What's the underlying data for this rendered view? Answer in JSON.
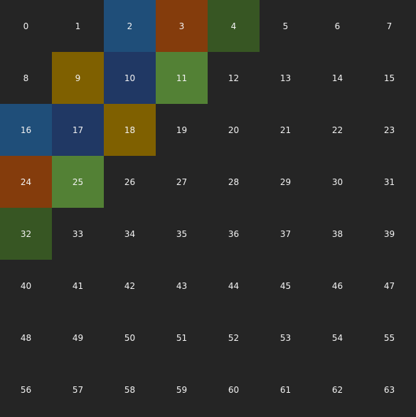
{
  "grid": {
    "columns": 8,
    "rows": 8,
    "background": "#252525",
    "text_color": "#f2f2f2",
    "cells": [
      {
        "label": "0"
      },
      {
        "label": "1"
      },
      {
        "label": "2",
        "color": "#1f4e79"
      },
      {
        "label": "3",
        "color": "#843c0c"
      },
      {
        "label": "4",
        "color": "#375623"
      },
      {
        "label": "5"
      },
      {
        "label": "6"
      },
      {
        "label": "7"
      },
      {
        "label": "8"
      },
      {
        "label": "9",
        "color": "#7f6000"
      },
      {
        "label": "10",
        "color": "#203864"
      },
      {
        "label": "11",
        "color": "#538135"
      },
      {
        "label": "12"
      },
      {
        "label": "13"
      },
      {
        "label": "14"
      },
      {
        "label": "15"
      },
      {
        "label": "16",
        "color": "#1f4e79"
      },
      {
        "label": "17",
        "color": "#203864"
      },
      {
        "label": "18",
        "color": "#7f6000"
      },
      {
        "label": "19"
      },
      {
        "label": "20"
      },
      {
        "label": "21"
      },
      {
        "label": "22"
      },
      {
        "label": "23"
      },
      {
        "label": "24",
        "color": "#843c0c"
      },
      {
        "label": "25",
        "color": "#538135"
      },
      {
        "label": "26"
      },
      {
        "label": "27"
      },
      {
        "label": "28"
      },
      {
        "label": "29"
      },
      {
        "label": "30"
      },
      {
        "label": "31"
      },
      {
        "label": "32",
        "color": "#375623"
      },
      {
        "label": "33"
      },
      {
        "label": "34"
      },
      {
        "label": "35"
      },
      {
        "label": "36"
      },
      {
        "label": "37"
      },
      {
        "label": "38"
      },
      {
        "label": "39"
      },
      {
        "label": "40"
      },
      {
        "label": "41"
      },
      {
        "label": "42"
      },
      {
        "label": "43"
      },
      {
        "label": "44"
      },
      {
        "label": "45"
      },
      {
        "label": "46"
      },
      {
        "label": "47"
      },
      {
        "label": "48"
      },
      {
        "label": "49"
      },
      {
        "label": "50"
      },
      {
        "label": "51"
      },
      {
        "label": "52"
      },
      {
        "label": "53"
      },
      {
        "label": "54"
      },
      {
        "label": "55"
      },
      {
        "label": "56"
      },
      {
        "label": "57"
      },
      {
        "label": "58"
      },
      {
        "label": "59"
      },
      {
        "label": "60"
      },
      {
        "label": "61"
      },
      {
        "label": "62"
      },
      {
        "label": "63"
      }
    ]
  }
}
